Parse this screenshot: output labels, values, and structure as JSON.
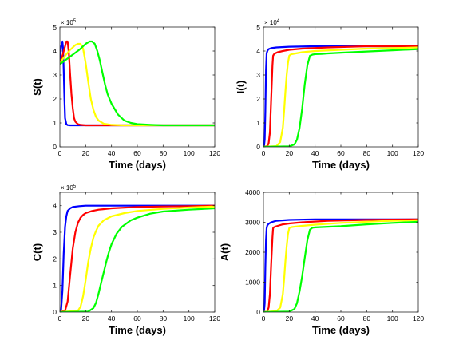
{
  "chart_data": [
    {
      "type": "line",
      "ylabel": "S(t)",
      "xlabel": "Time (days)",
      "xlim": [
        0,
        120
      ],
      "ylim": [
        0,
        5
      ],
      "y_multiplier": "× 10^5",
      "x_ticks": [
        "0",
        "20",
        "40",
        "60",
        "80",
        "100",
        "120"
      ],
      "y_ticks": [
        "0",
        "1",
        "2",
        "3",
        "4",
        "5"
      ],
      "grid": false,
      "series": [
        {
          "color": "#0000ff",
          "x": [
            0,
            1,
            2,
            2.5,
            3,
            3.5,
            4,
            5,
            6,
            8,
            10,
            15,
            20,
            40,
            60,
            80,
            100,
            120
          ],
          "y": [
            3.5,
            4.2,
            4.4,
            4.1,
            3.2,
            2.0,
            1.2,
            0.95,
            0.91,
            0.9,
            0.9,
            0.9,
            0.9,
            0.9,
            0.9,
            0.9,
            0.9,
            0.9
          ]
        },
        {
          "color": "#ff0000",
          "x": [
            0,
            2,
            4,
            5,
            6,
            7,
            8,
            9,
            10,
            11,
            12,
            14,
            16,
            20,
            30,
            60,
            90,
            120
          ],
          "y": [
            3.5,
            3.8,
            4.2,
            4.4,
            4.4,
            3.9,
            3.0,
            2.2,
            1.6,
            1.2,
            1.05,
            0.95,
            0.92,
            0.9,
            0.9,
            0.9,
            0.9,
            0.9
          ]
        },
        {
          "color": "#ffff00",
          "x": [
            0,
            4,
            8,
            12,
            14,
            16,
            18,
            20,
            22,
            24,
            26,
            28,
            30,
            34,
            40,
            50,
            60,
            80,
            100,
            120
          ],
          "y": [
            3.5,
            3.8,
            4.05,
            4.25,
            4.3,
            4.3,
            4.1,
            3.5,
            2.7,
            2.0,
            1.55,
            1.25,
            1.1,
            0.97,
            0.92,
            0.9,
            0.9,
            0.9,
            0.9,
            0.9
          ]
        },
        {
          "color": "#00ff00",
          "x": [
            0,
            5,
            10,
            15,
            20,
            23,
            25,
            27,
            29,
            31,
            33,
            35,
            37,
            40,
            45,
            50,
            55,
            60,
            70,
            80,
            100,
            120
          ],
          "y": [
            3.45,
            3.65,
            3.85,
            4.05,
            4.3,
            4.4,
            4.4,
            4.3,
            4.0,
            3.6,
            3.1,
            2.6,
            2.2,
            1.8,
            1.35,
            1.1,
            1.0,
            0.95,
            0.92,
            0.9,
            0.9,
            0.9
          ]
        }
      ]
    },
    {
      "type": "line",
      "ylabel": "I(t)",
      "xlabel": "Time (days)",
      "xlim": [
        0,
        120
      ],
      "ylim": [
        0,
        5
      ],
      "y_multiplier": "× 10^4",
      "x_ticks": [
        "0",
        "20",
        "40",
        "60",
        "80",
        "100",
        "120"
      ],
      "y_ticks": [
        "0",
        "1",
        "2",
        "3",
        "4",
        "5"
      ],
      "grid": false,
      "series": [
        {
          "color": "#0000ff",
          "x": [
            0,
            0.5,
            1,
            1.5,
            2,
            2.5,
            3,
            3.5,
            4,
            6,
            10,
            20,
            40,
            60,
            80,
            100,
            120
          ],
          "y": [
            0,
            0.05,
            0.3,
            1.5,
            3.2,
            3.9,
            4.0,
            4.05,
            4.08,
            4.12,
            4.15,
            4.18,
            4.2,
            4.2,
            4.2,
            4.2,
            4.2
          ]
        },
        {
          "color": "#ff0000",
          "x": [
            0,
            3,
            4,
            5,
            6,
            7,
            7.5,
            8,
            9,
            11,
            15,
            20,
            30,
            50,
            80,
            100,
            120
          ],
          "y": [
            0,
            0.03,
            0.15,
            0.6,
            2.0,
            3.4,
            3.8,
            3.85,
            3.9,
            3.95,
            4.0,
            4.05,
            4.1,
            4.15,
            4.2,
            4.2,
            4.2
          ]
        },
        {
          "color": "#ffff00",
          "x": [
            0,
            10,
            13,
            15,
            16,
            17,
            18,
            19,
            20,
            21,
            22,
            25,
            30,
            40,
            60,
            80,
            100,
            120
          ],
          "y": [
            0,
            0.03,
            0.2,
            0.8,
            1.5,
            2.3,
            3.0,
            3.5,
            3.8,
            3.85,
            3.87,
            3.9,
            3.95,
            4.0,
            4.05,
            4.1,
            4.12,
            4.15
          ]
        },
        {
          "color": "#00ff00",
          "x": [
            0,
            20,
            24,
            26,
            28,
            30,
            32,
            34,
            36,
            38,
            40,
            45,
            50,
            60,
            80,
            100,
            120
          ],
          "y": [
            0,
            0.02,
            0.1,
            0.3,
            0.8,
            1.6,
            2.6,
            3.4,
            3.8,
            3.85,
            3.87,
            3.88,
            3.9,
            3.93,
            3.98,
            4.03,
            4.08
          ]
        }
      ]
    },
    {
      "type": "line",
      "ylabel": "C(t)",
      "xlabel": "Time (days)",
      "xlim": [
        0,
        120
      ],
      "ylim": [
        0,
        4.5
      ],
      "y_multiplier": "× 10^5",
      "x_ticks": [
        "0",
        "20",
        "40",
        "60",
        "80",
        "100",
        "120"
      ],
      "y_ticks": [
        "0",
        "1",
        "2",
        "3",
        "4"
      ],
      "grid": false,
      "series": [
        {
          "color": "#0000ff",
          "x": [
            0,
            1,
            2,
            3,
            4,
            5,
            6,
            8,
            10,
            15,
            20,
            30,
            40,
            60,
            80,
            100,
            120
          ],
          "y": [
            0,
            0.1,
            0.8,
            2.2,
            3.2,
            3.6,
            3.8,
            3.9,
            3.95,
            3.98,
            4.0,
            4.0,
            4.0,
            4.0,
            4.0,
            4.0,
            4.0
          ]
        },
        {
          "color": "#ff0000",
          "x": [
            0,
            4,
            6,
            8,
            10,
            12,
            14,
            16,
            18,
            20,
            25,
            30,
            40,
            60,
            80,
            100,
            120
          ],
          "y": [
            0,
            0.05,
            0.4,
            1.4,
            2.4,
            3.0,
            3.35,
            3.55,
            3.65,
            3.72,
            3.8,
            3.85,
            3.9,
            3.95,
            3.97,
            3.98,
            4.0
          ]
        },
        {
          "color": "#ffff00",
          "x": [
            0,
            14,
            16,
            18,
            20,
            22,
            24,
            26,
            28,
            30,
            34,
            40,
            50,
            60,
            80,
            100,
            120
          ],
          "y": [
            0,
            0.05,
            0.2,
            0.6,
            1.2,
            1.9,
            2.4,
            2.8,
            3.05,
            3.25,
            3.45,
            3.6,
            3.72,
            3.8,
            3.88,
            3.93,
            3.97
          ]
        },
        {
          "color": "#00ff00",
          "x": [
            0,
            22,
            26,
            28,
            30,
            32,
            34,
            36,
            38,
            40,
            44,
            48,
            55,
            60,
            70,
            80,
            100,
            120
          ],
          "y": [
            0,
            0.02,
            0.15,
            0.35,
            0.7,
            1.1,
            1.5,
            1.9,
            2.25,
            2.55,
            2.95,
            3.2,
            3.45,
            3.55,
            3.7,
            3.78,
            3.85,
            3.9
          ]
        }
      ]
    },
    {
      "type": "line",
      "ylabel": "A(t)",
      "xlabel": "Time (days)",
      "xlim": [
        0,
        120
      ],
      "ylim": [
        0,
        4000
      ],
      "x_ticks": [
        "0",
        "20",
        "40",
        "60",
        "80",
        "100",
        "120"
      ],
      "y_ticks": [
        "0",
        "1000",
        "2000",
        "3000",
        "4000"
      ],
      "grid": false,
      "series": [
        {
          "color": "#0000ff",
          "x": [
            0,
            0.5,
            1,
            1.5,
            2,
            2.5,
            3,
            4,
            6,
            10,
            20,
            40,
            60,
            80,
            100,
            120
          ],
          "y": [
            0,
            50,
            300,
            1500,
            2400,
            2800,
            2900,
            2950,
            3000,
            3050,
            3080,
            3100,
            3100,
            3100,
            3100,
            3100
          ]
        },
        {
          "color": "#ff0000",
          "x": [
            0,
            3,
            4,
            5,
            6,
            7,
            7.5,
            8,
            9,
            11,
            15,
            20,
            30,
            50,
            80,
            100,
            120
          ],
          "y": [
            0,
            30,
            150,
            600,
            1600,
            2500,
            2800,
            2830,
            2850,
            2880,
            2930,
            2960,
            3000,
            3050,
            3080,
            3090,
            3100
          ]
        },
        {
          "color": "#ffff00",
          "x": [
            0,
            10,
            13,
            15,
            16,
            17,
            18,
            19,
            20,
            21,
            22,
            25,
            30,
            40,
            60,
            80,
            100,
            120
          ],
          "y": [
            0,
            30,
            150,
            600,
            1100,
            1700,
            2200,
            2600,
            2800,
            2830,
            2840,
            2860,
            2880,
            2920,
            2980,
            3020,
            3050,
            3070
          ]
        },
        {
          "color": "#00ff00",
          "x": [
            0,
            20,
            24,
            26,
            28,
            30,
            32,
            34,
            36,
            38,
            40,
            45,
            50,
            60,
            80,
            100,
            120
          ],
          "y": [
            0,
            20,
            100,
            300,
            700,
            1200,
            1800,
            2400,
            2750,
            2820,
            2830,
            2840,
            2850,
            2870,
            2930,
            2980,
            3020
          ]
        }
      ]
    }
  ]
}
